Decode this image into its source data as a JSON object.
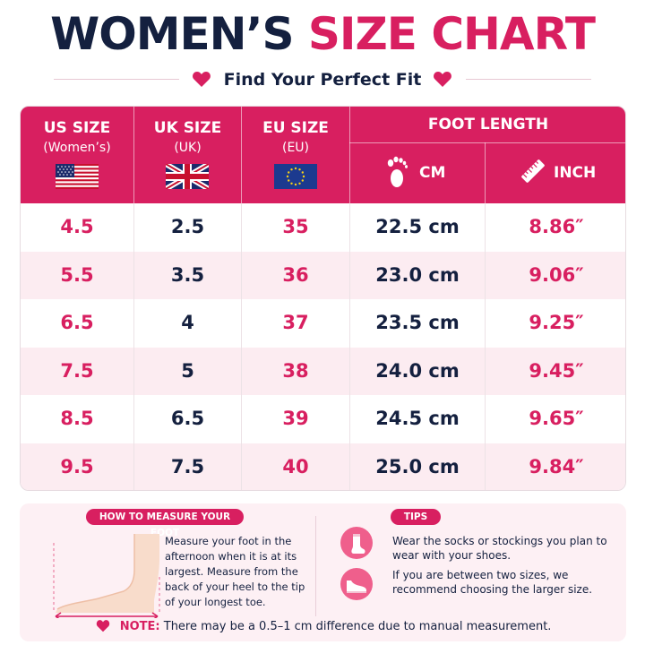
{
  "header": {
    "title_dark": "WOMEN’S",
    "title_pink": "SIZE CHART",
    "subtitle": "Find Your Perfect Fit"
  },
  "table": {
    "columns": [
      {
        "label": "US SIZE",
        "sub": "(Women’s)",
        "flag": "us-flag-icon"
      },
      {
        "label": "UK SIZE",
        "sub": "(UK)",
        "flag": "uk-flag-icon"
      },
      {
        "label": "EU SIZE",
        "sub": "(EU)",
        "flag": "eu-flag-icon"
      }
    ],
    "foot_length_label": "FOOT LENGTH",
    "cm_label": "CM",
    "inch_label": "INCH",
    "rows": [
      {
        "us": "4.5",
        "uk": "2.5",
        "eu": "35",
        "cm": "22.5 cm",
        "inch": "8.86″"
      },
      {
        "us": "5.5",
        "uk": "3.5",
        "eu": "36",
        "cm": "23.0 cm",
        "inch": "9.06″"
      },
      {
        "us": "6.5",
        "uk": "4",
        "eu": "37",
        "cm": "23.5 cm",
        "inch": "9.25″"
      },
      {
        "us": "7.5",
        "uk": "5",
        "eu": "38",
        "cm": "24.0 cm",
        "inch": "9.45″"
      },
      {
        "us": "8.5",
        "uk": "6.5",
        "eu": "39",
        "cm": "24.5 cm",
        "inch": "9.65″"
      },
      {
        "us": "9.5",
        "uk": "7.5",
        "eu": "40",
        "cm": "25.0 cm",
        "inch": "9.84″"
      }
    ]
  },
  "howto": {
    "label": "HOW TO MEASURE YOUR FOOT",
    "text": "Measure your foot in the afternoon when it is at its largest. Measure from the back of your heel to the tip of your longest toe."
  },
  "tips": {
    "label": "TIPS",
    "items": [
      {
        "icon": "sock-icon",
        "text": "Wear the socks or stockings you plan to wear with your shoes."
      },
      {
        "icon": "shoe-icon",
        "text": "If you are between two sizes, we recommend choosing the larger size."
      }
    ]
  },
  "note": {
    "label": "NOTE:",
    "text": "There may be a 0.5–1 cm difference due to manual measurement."
  },
  "colors": {
    "accent": "#d81f60",
    "navy": "#14203f",
    "row_alt": "#fcecf1"
  }
}
